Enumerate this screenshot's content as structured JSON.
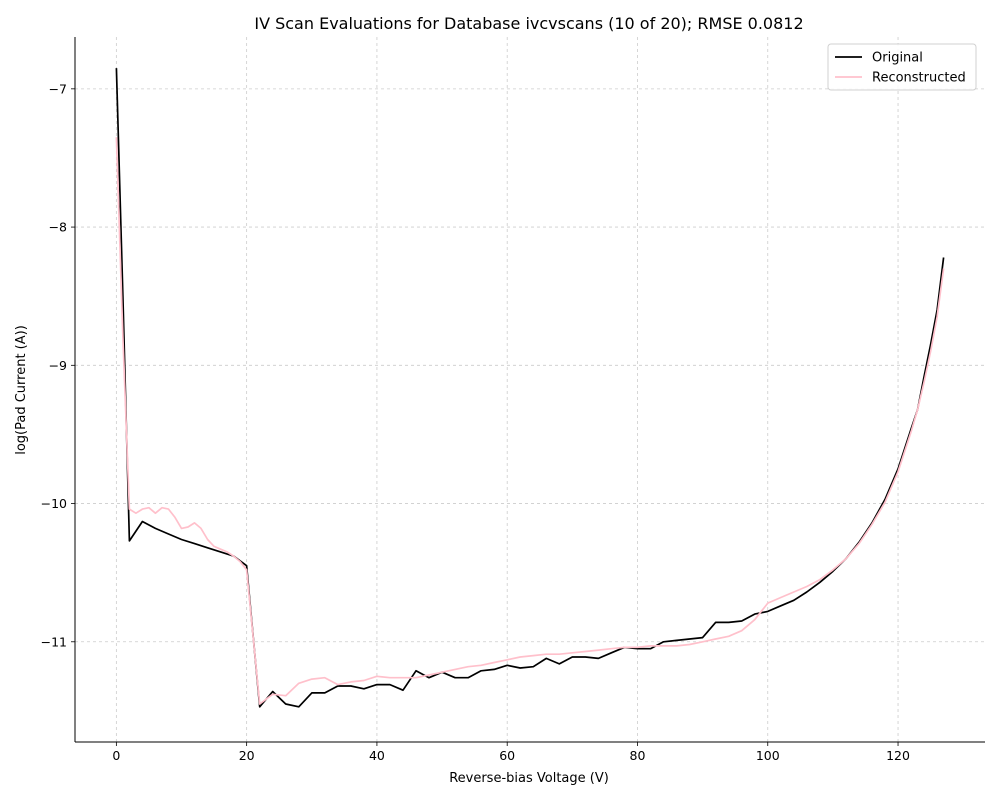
{
  "chart_data": {
    "type": "line",
    "title": "IV Scan Evaluations for Database ivcvscans (10 of 20); RMSE 0.0812",
    "xlabel": "Reverse-bias Voltage (V)",
    "ylabel": "log(Pad Current (A))",
    "xlim": [
      -6.35,
      133.35
    ],
    "ylim": [
      -11.725,
      -6.625
    ],
    "xticks": [
      0,
      20,
      40,
      60,
      80,
      100,
      120
    ],
    "xtick_labels": [
      "0",
      "20",
      "40",
      "60",
      "80",
      "100",
      "120"
    ],
    "yticks": [
      -11,
      -10,
      -9,
      -8,
      -7
    ],
    "ytick_labels": [
      "−11",
      "−10",
      "−9",
      "−8",
      "−7"
    ],
    "grid": true,
    "legend_position": "top-right",
    "series": [
      {
        "name": "Original",
        "color": "#000000",
        "x": [
          0,
          1,
          2,
          4,
          6,
          8,
          10,
          12,
          14,
          16,
          18,
          20,
          22,
          24,
          26,
          28,
          30,
          32,
          34,
          36,
          38,
          40,
          42,
          44,
          46,
          48,
          50,
          52,
          54,
          56,
          58,
          60,
          62,
          64,
          66,
          68,
          70,
          72,
          74,
          76,
          78,
          80,
          82,
          84,
          86,
          88,
          90,
          92,
          94,
          96,
          98,
          100,
          102,
          104,
          106,
          108,
          110,
          112,
          114,
          116,
          118,
          120,
          122,
          123,
          124,
          125,
          126,
          127
        ],
        "y": [
          -6.85,
          -8.5,
          -10.27,
          -10.13,
          -10.18,
          -10.22,
          -10.26,
          -10.29,
          -10.32,
          -10.35,
          -10.38,
          -10.45,
          -11.47,
          -11.36,
          -11.45,
          -11.47,
          -11.37,
          -11.37,
          -11.32,
          -11.32,
          -11.34,
          -11.31,
          -11.31,
          -11.35,
          -11.21,
          -11.26,
          -11.22,
          -11.26,
          -11.26,
          -11.21,
          -11.2,
          -11.17,
          -11.19,
          -11.18,
          -11.12,
          -11.16,
          -11.11,
          -11.11,
          -11.12,
          -11.08,
          -11.04,
          -11.05,
          -11.05,
          -11.0,
          -10.99,
          -10.98,
          -10.97,
          -10.86,
          -10.86,
          -10.85,
          -10.8,
          -10.78,
          -10.74,
          -10.7,
          -10.64,
          -10.57,
          -10.49,
          -10.4,
          -10.28,
          -10.14,
          -9.97,
          -9.75,
          -9.46,
          -9.32,
          -9.08,
          -8.85,
          -8.6,
          -8.22
        ]
      },
      {
        "name": "Reconstructed",
        "color": "#ffc0cb",
        "x": [
          0,
          1,
          2,
          3,
          4,
          5,
          6,
          7,
          8,
          9,
          10,
          11,
          12,
          13,
          14,
          15,
          16,
          17,
          18,
          19,
          20,
          22,
          24,
          26,
          28,
          30,
          32,
          34,
          36,
          38,
          40,
          42,
          44,
          46,
          48,
          50,
          52,
          54,
          56,
          58,
          60,
          62,
          64,
          66,
          68,
          70,
          72,
          74,
          76,
          78,
          80,
          82,
          84,
          86,
          88,
          90,
          92,
          94,
          96,
          98,
          100,
          102,
          104,
          106,
          108,
          110,
          112,
          114,
          116,
          118,
          120,
          122,
          123,
          124,
          125,
          126,
          127
        ],
        "y": [
          -7.35,
          -8.8,
          -10.04,
          -10.07,
          -10.04,
          -10.03,
          -10.07,
          -10.03,
          -10.04,
          -10.1,
          -10.18,
          -10.17,
          -10.14,
          -10.18,
          -10.26,
          -10.31,
          -10.33,
          -10.35,
          -10.38,
          -10.42,
          -10.48,
          -11.45,
          -11.38,
          -11.39,
          -11.3,
          -11.27,
          -11.26,
          -11.31,
          -11.29,
          -11.28,
          -11.25,
          -11.26,
          -11.26,
          -11.26,
          -11.24,
          -11.22,
          -11.2,
          -11.18,
          -11.17,
          -11.15,
          -11.13,
          -11.11,
          -11.1,
          -11.09,
          -11.09,
          -11.08,
          -11.07,
          -11.06,
          -11.05,
          -11.04,
          -11.04,
          -11.03,
          -11.03,
          -11.03,
          -11.02,
          -11.0,
          -10.98,
          -10.96,
          -10.92,
          -10.84,
          -10.72,
          -10.68,
          -10.64,
          -10.6,
          -10.55,
          -10.48,
          -10.4,
          -10.29,
          -10.15,
          -9.99,
          -9.77,
          -9.48,
          -9.32,
          -9.12,
          -8.9,
          -8.65,
          -8.3
        ]
      }
    ]
  }
}
